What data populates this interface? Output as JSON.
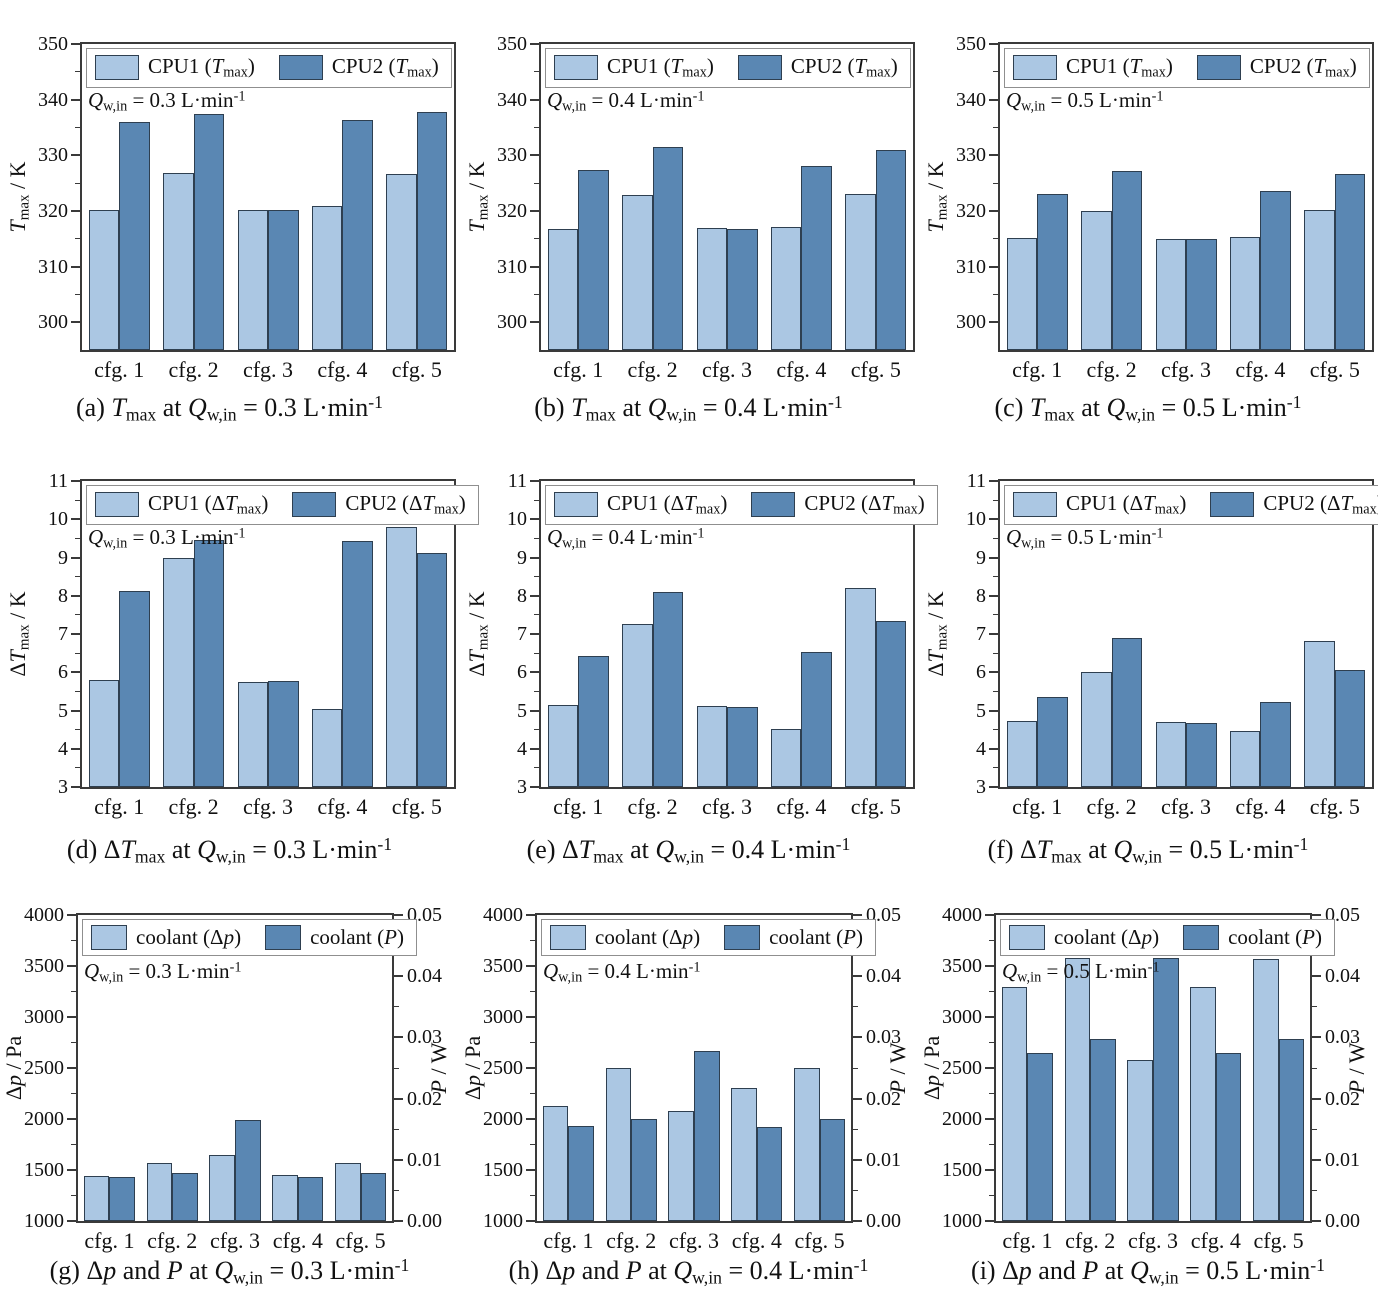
{
  "style": {
    "light_color": "#abc7e3",
    "dark_color": "#5a87b3",
    "bar_edge": "#2e3f50",
    "axis_color": "#3a3a3a",
    "legend_border": "#8f8f8f",
    "background": "#ffffff"
  },
  "categories": [
    "cfg. 1",
    "cfg. 2",
    "cfg. 3",
    "cfg. 4",
    "cfg. 5"
  ],
  "chart_data": [
    {
      "id": "a",
      "row": 1,
      "type": "bar",
      "caption": "(a) *T*~max~ at *Q*~w,in~ = 0.3 L·min^-1^",
      "annotation": "*Q*~w,in~ = 0.3 L·min^-1^",
      "ylabel": "*T*~max~ / K",
      "ylim": [
        295,
        350
      ],
      "yticks": [
        300,
        310,
        320,
        330,
        340,
        350
      ],
      "minor_step": 5,
      "legend": [
        {
          "label": "CPU1 (*T*~max~)",
          "color_key": "light"
        },
        {
          "label": "CPU2 (*T*~max~)",
          "color_key": "dark"
        }
      ],
      "series": [
        {
          "name": "CPU1 (Tmax)",
          "unit": "K",
          "values": [
            320.2,
            326.8,
            320.2,
            320.9,
            326.6
          ]
        },
        {
          "name": "CPU2 (Tmax)",
          "unit": "K",
          "values": [
            336.0,
            337.5,
            320.1,
            336.3,
            337.7
          ]
        }
      ]
    },
    {
      "id": "b",
      "row": 1,
      "type": "bar",
      "caption": "(b) *T*~max~ at *Q*~w,in~ = 0.4 L·min^-1^",
      "annotation": "*Q*~w,in~ = 0.4 L·min^-1^",
      "ylabel": "*T*~max~ / K",
      "ylim": [
        295,
        350
      ],
      "yticks": [
        300,
        310,
        320,
        330,
        340,
        350
      ],
      "minor_step": 5,
      "legend": [
        {
          "label": "CPU1 (*T*~max~)",
          "color_key": "light"
        },
        {
          "label": "CPU2 (*T*~max~)",
          "color_key": "dark"
        }
      ],
      "series": [
        {
          "name": "CPU1 (Tmax)",
          "unit": "K",
          "values": [
            316.8,
            322.9,
            316.9,
            317.1,
            323.1
          ]
        },
        {
          "name": "CPU2 (Tmax)",
          "unit": "K",
          "values": [
            327.4,
            331.5,
            316.7,
            328.0,
            331.0
          ]
        }
      ]
    },
    {
      "id": "c",
      "row": 1,
      "type": "bar",
      "caption": "(c) *T*~max~ at *Q*~w,in~ = 0.5 L·min^-1^",
      "annotation": "*Q*~w,in~ = 0.5 L·min^-1^",
      "ylabel": "*T*~max~ / K",
      "ylim": [
        295,
        350
      ],
      "yticks": [
        300,
        310,
        320,
        330,
        340,
        350
      ],
      "minor_step": 5,
      "legend": [
        {
          "label": "CPU1 (*T*~max~)",
          "color_key": "light"
        },
        {
          "label": "CPU2 (*T*~max~)",
          "color_key": "dark"
        }
      ],
      "series": [
        {
          "name": "CPU1 (Tmax)",
          "unit": "K",
          "values": [
            315.1,
            320.0,
            315.0,
            315.4,
            320.2
          ]
        },
        {
          "name": "CPU2 (Tmax)",
          "unit": "K",
          "values": [
            323.0,
            327.1,
            315.0,
            323.5,
            326.6
          ]
        }
      ]
    },
    {
      "id": "d",
      "row": 2,
      "type": "bar",
      "caption": "(d) Δ*T*~max~ at *Q*~w,in~ = 0.3 L·min^-1^",
      "annotation": "*Q*~w,in~ = 0.3 L·min^-1^",
      "ylabel": "Δ*T*~max~ / K",
      "ylim": [
        3,
        11
      ],
      "yticks": [
        3,
        4,
        5,
        6,
        7,
        8,
        9,
        10,
        11
      ],
      "minor_step": 0.5,
      "legend": [
        {
          "label": "CPU1 (Δ*T*~max~)",
          "color_key": "light"
        },
        {
          "label": "CPU2 (Δ*T*~max~)",
          "color_key": "dark"
        }
      ],
      "series": [
        {
          "name": "CPU1 (dTmax)",
          "unit": "K",
          "values": [
            5.8,
            9.0,
            5.75,
            5.03,
            9.8
          ]
        },
        {
          "name": "CPU2 (dTmax)",
          "unit": "K",
          "values": [
            8.12,
            9.45,
            5.78,
            9.43,
            9.12
          ]
        }
      ]
    },
    {
      "id": "e",
      "row": 2,
      "type": "bar",
      "caption": "(e) Δ*T*~max~ at *Q*~w,in~ = 0.4 L·min^-1^",
      "annotation": "*Q*~w,in~ = 0.4 L·min^-1^",
      "ylabel": "Δ*T*~max~ / K",
      "ylim": [
        3,
        11
      ],
      "yticks": [
        3,
        4,
        5,
        6,
        7,
        8,
        9,
        10,
        11
      ],
      "minor_step": 0.5,
      "legend": [
        {
          "label": "CPU1 (Δ*T*~max~)",
          "color_key": "light"
        },
        {
          "label": "CPU2 (Δ*T*~max~)",
          "color_key": "dark"
        }
      ],
      "series": [
        {
          "name": "CPU1 (dTmax)",
          "unit": "K",
          "values": [
            5.15,
            7.27,
            5.12,
            4.52,
            8.2
          ]
        },
        {
          "name": "CPU2 (dTmax)",
          "unit": "K",
          "values": [
            6.43,
            8.1,
            5.1,
            6.52,
            7.35
          ]
        }
      ]
    },
    {
      "id": "f",
      "row": 2,
      "type": "bar",
      "caption": "(f) Δ*T*~max~ at *Q*~w,in~ = 0.5 L·min^-1^",
      "annotation": "*Q*~w,in~ = 0.5 L·min^-1^",
      "ylabel": "Δ*T*~max~ / K",
      "ylim": [
        3,
        11
      ],
      "yticks": [
        3,
        4,
        5,
        6,
        7,
        8,
        9,
        10,
        11
      ],
      "minor_step": 0.5,
      "legend": [
        {
          "label": "CPU1 (Δ*T*~max~)",
          "color_key": "light"
        },
        {
          "label": "CPU2 (Δ*T*~max~)",
          "color_key": "dark"
        }
      ],
      "series": [
        {
          "name": "CPU1 (dTmax)",
          "unit": "K",
          "values": [
            4.73,
            6.0,
            4.7,
            4.46,
            6.82
          ]
        },
        {
          "name": "CPU2 (dTmax)",
          "unit": "K",
          "values": [
            5.35,
            6.9,
            4.68,
            5.23,
            6.07
          ]
        }
      ]
    },
    {
      "id": "g",
      "row": 3,
      "type": "bar",
      "caption": "(g) Δ*p* and *P* at *Q*~w,in~ = 0.3 L·min^-1^",
      "annotation": "*Q*~w,in~ = 0.3 L·min^-1^",
      "ylabel": "Δ*p* / Pa",
      "ylabel_right": "*P* / W",
      "ylim": [
        1000,
        4000
      ],
      "yticks": [
        1000,
        1500,
        2000,
        2500,
        3000,
        3500,
        4000
      ],
      "minor_step": 250,
      "ylim_right": [
        0,
        0.05
      ],
      "yticks_right": [
        "0.00",
        "0.01",
        "0.02",
        "0.03",
        "0.04",
        "0.05"
      ],
      "minor_step_right": 0.005,
      "legend": [
        {
          "label": "coolant (Δ*p*)",
          "color_key": "light"
        },
        {
          "label": "coolant (*P*)",
          "color_key": "dark"
        }
      ],
      "series": [
        {
          "name": "coolant dp",
          "unit": "Pa",
          "axis": "left",
          "values": [
            1445,
            1570,
            1650,
            1450,
            1570
          ]
        },
        {
          "name": "coolant P",
          "unit": "W",
          "axis": "right",
          "values": [
            0.0072,
            0.0079,
            0.0165,
            0.0072,
            0.0079
          ]
        }
      ]
    },
    {
      "id": "h",
      "row": 3,
      "type": "bar",
      "caption": "(h) Δ*p* and *P* at *Q*~w,in~ = 0.4 L·min^-1^",
      "annotation": "*Q*~w,in~ = 0.4 L·min^-1^",
      "ylabel": "Δ*p* / Pa",
      "ylabel_right": "*P* / W",
      "ylim": [
        1000,
        4000
      ],
      "yticks": [
        1000,
        1500,
        2000,
        2500,
        3000,
        3500,
        4000
      ],
      "minor_step": 250,
      "ylim_right": [
        0,
        0.05
      ],
      "yticks_right": [
        "0.00",
        "0.01",
        "0.02",
        "0.03",
        "0.04",
        "0.05"
      ],
      "minor_step_right": 0.005,
      "legend": [
        {
          "label": "coolant (Δ*p*)",
          "color_key": "light"
        },
        {
          "label": "coolant (*P*)",
          "color_key": "dark"
        }
      ],
      "series": [
        {
          "name": "coolant dp",
          "unit": "Pa",
          "axis": "left",
          "values": [
            2130,
            2500,
            2080,
            2300,
            2500
          ]
        },
        {
          "name": "coolant P",
          "unit": "W",
          "axis": "right",
          "values": [
            0.0155,
            0.0167,
            0.0278,
            0.0153,
            0.0167
          ]
        }
      ]
    },
    {
      "id": "i",
      "row": 3,
      "type": "bar",
      "caption": "(i) Δ*p* and *P* at *Q*~w,in~ = 0.5 L·min^-1^",
      "annotation": "*Q*~w,in~ = 0.5 L·min^-1^",
      "ylabel": "Δ*p* / Pa",
      "ylabel_right": "*P* / W",
      "ylim": [
        1000,
        4000
      ],
      "yticks": [
        1000,
        1500,
        2000,
        2500,
        3000,
        3500,
        4000
      ],
      "minor_step": 250,
      "ylim_right": [
        0,
        0.05
      ],
      "yticks_right": [
        "0.00",
        "0.01",
        "0.02",
        "0.03",
        "0.04",
        "0.05"
      ],
      "minor_step_right": 0.005,
      "legend": [
        {
          "label": "coolant (Δ*p*)",
          "color_key": "light"
        },
        {
          "label": "coolant (*P*)",
          "color_key": "dark"
        }
      ],
      "series": [
        {
          "name": "coolant dp",
          "unit": "Pa",
          "axis": "left",
          "values": [
            3290,
            3580,
            2580,
            3290,
            3570
          ]
        },
        {
          "name": "coolant P",
          "unit": "W",
          "axis": "right",
          "values": [
            0.0275,
            0.0297,
            0.043,
            0.0275,
            0.0297
          ]
        }
      ]
    }
  ]
}
